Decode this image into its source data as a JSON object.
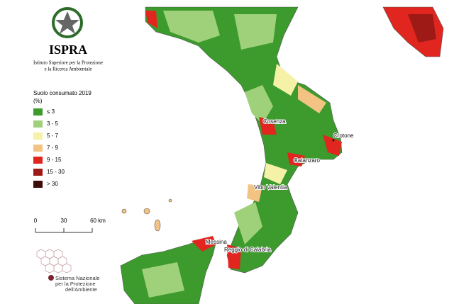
{
  "header": {
    "logo_text": "ISPRA",
    "subtitle_lines": [
      "Istituto Superiore per la Protezione",
      "e la Ricerca Ambientale"
    ]
  },
  "legend": {
    "title_lines": [
      "Suolo consumato 2019",
      "(%)"
    ],
    "items": [
      {
        "label": "≤ 3",
        "color": "#3c9b2c"
      },
      {
        "label": "3 - 5",
        "color": "#9fd17a"
      },
      {
        "label": "5 - 7",
        "color": "#f5f2a8"
      },
      {
        "label": "7 - 9",
        "color": "#f3c383"
      },
      {
        "label": "9 - 15",
        "color": "#e0261f"
      },
      {
        "label": "15 - 30",
        "color": "#9e1a16"
      },
      {
        "label": "> 30",
        "color": "#3d0c08"
      }
    ]
  },
  "scale": {
    "labels": [
      "0",
      "30",
      "60 km"
    ]
  },
  "cities": [
    {
      "label": "Cosenza"
    },
    {
      "label": "Crotone"
    },
    {
      "label": "Catanzaro"
    },
    {
      "label": "Vibo Valentia"
    },
    {
      "label": "Messina"
    },
    {
      "label": "Reggio di Calabria"
    }
  ],
  "footer": {
    "lines": [
      "Sistema Nazionale",
      "per la Protezione",
      "dell'Ambiente"
    ]
  }
}
